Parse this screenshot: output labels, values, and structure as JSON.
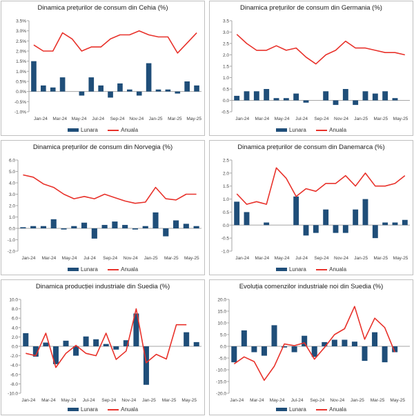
{
  "chart_data": [
    {
      "type": "bar+line",
      "title": "Dinamica prețurilor de consum din Cehia (%)",
      "categories": [
        "Jan-24",
        "Feb-24",
        "Mar-24",
        "Apr-24",
        "May-24",
        "Jun-24",
        "Jul-24",
        "Aug-24",
        "Sep-24",
        "Oct-24",
        "Nov-24",
        "Dec-24",
        "Jan-25",
        "Feb-25",
        "Mar-25",
        "Apr-25",
        "May-25",
        "Jun-25"
      ],
      "tick_labels": [
        "Jan-24",
        "Mar-24",
        "May-24",
        "Jul-24",
        "Sep-24",
        "Nov-24",
        "Jan-25",
        "Mar-25",
        "May-25"
      ],
      "y_ticks": [
        "-1.0%",
        "-0.5%",
        "0.0%",
        "0.5%",
        "1.0%",
        "1.5%",
        "2.0%",
        "2.5%",
        "3.0%",
        "3.5%"
      ],
      "ylim": [
        -1.0,
        3.5
      ],
      "series": [
        {
          "name": "Lunara",
          "type": "bar",
          "values": [
            1.5,
            0.3,
            0.2,
            0.7,
            0.0,
            -0.2,
            0.7,
            0.3,
            -0.3,
            0.4,
            0.1,
            -0.2,
            1.4,
            0.1,
            0.1,
            -0.1,
            0.5,
            0.3
          ]
        },
        {
          "name": "Anuala",
          "type": "line",
          "values": [
            2.3,
            2.0,
            2.0,
            2.9,
            2.6,
            2.0,
            2.2,
            2.2,
            2.6,
            2.8,
            2.8,
            3.0,
            2.8,
            2.7,
            2.7,
            1.9,
            2.4,
            2.9
          ]
        }
      ],
      "legend_position": "bottom",
      "grid": false
    },
    {
      "type": "bar+line",
      "title": "Dinamica prețurilor de consum din Germania (%)",
      "categories": [
        "Jan-24",
        "Feb-24",
        "Mar-24",
        "Apr-24",
        "May-24",
        "Jun-24",
        "Jul-24",
        "Aug-24",
        "Sep-24",
        "Oct-24",
        "Nov-24",
        "Dec-24",
        "Jan-25",
        "Feb-25",
        "Mar-25",
        "Apr-25",
        "May-25",
        "Jun-25"
      ],
      "tick_labels": [
        "Jan-24",
        "Mar-24",
        "May-24",
        "Jul-24",
        "Sep-24",
        "Nov-24",
        "Jan-25",
        "Mar-25",
        "May-25"
      ],
      "y_ticks": [
        "-0.5",
        "0.0",
        "0.5",
        "1.0",
        "1.5",
        "2.0",
        "2.5",
        "3.0",
        "3.5"
      ],
      "ylim": [
        -0.5,
        3.5
      ],
      "series": [
        {
          "name": "Lunara",
          "type": "bar",
          "values": [
            0.2,
            0.4,
            0.4,
            0.5,
            0.1,
            0.1,
            0.3,
            -0.1,
            0.0,
            0.4,
            -0.2,
            0.5,
            -0.2,
            0.4,
            0.3,
            0.4,
            0.1,
            0.0
          ]
        },
        {
          "name": "Anuala",
          "type": "line",
          "values": [
            2.9,
            2.5,
            2.2,
            2.2,
            2.4,
            2.2,
            2.3,
            1.9,
            1.6,
            2.0,
            2.2,
            2.6,
            2.3,
            2.3,
            2.2,
            2.1,
            2.1,
            2.0
          ]
        }
      ],
      "legend_position": "bottom",
      "grid": false
    },
    {
      "type": "bar+line",
      "title": "Dinamica prețurilor de consum din Norvegia (%)",
      "categories": [
        "Jan-24",
        "Feb-24",
        "Mar-24",
        "Apr-24",
        "May-24",
        "Jun-24",
        "Jul-24",
        "Aug-24",
        "Sep-24",
        "Oct-24",
        "Nov-24",
        "Dec-24",
        "Jan-25",
        "Feb-25",
        "Mar-25",
        "Apr-25",
        "May-25",
        "Jun-25"
      ],
      "tick_labels": [
        "Jan-24",
        "Mar-24",
        "May-24",
        "Jul-24",
        "Sep-24",
        "Nov-24",
        "Jan-25",
        "Mar-25",
        "May-25"
      ],
      "y_ticks": [
        "-2.0",
        "-1.0",
        "0.0",
        "1.0",
        "2.0",
        "3.0",
        "4.0",
        "5.0",
        "6.0"
      ],
      "ylim": [
        -2.0,
        6.0
      ],
      "series": [
        {
          "name": "Lunara",
          "type": "bar",
          "values": [
            0.1,
            0.2,
            0.2,
            0.8,
            -0.1,
            0.2,
            0.5,
            -0.9,
            0.3,
            0.6,
            0.3,
            -0.1,
            0.2,
            1.4,
            -0.7,
            0.7,
            0.4,
            0.2
          ]
        },
        {
          "name": "Anuala",
          "type": "line",
          "values": [
            4.7,
            4.5,
            3.9,
            3.6,
            3.0,
            2.6,
            2.8,
            2.6,
            3.0,
            2.7,
            2.4,
            2.2,
            2.3,
            3.6,
            2.6,
            2.5,
            3.0,
            3.0
          ]
        }
      ],
      "legend_position": "bottom",
      "grid": false
    },
    {
      "type": "bar+line",
      "title": "Dinamica prețurilor de consum din Danemarca (%)",
      "categories": [
        "Jan-24",
        "Feb-24",
        "Mar-24",
        "Apr-24",
        "May-24",
        "Jun-24",
        "Jul-24",
        "Aug-24",
        "Sep-24",
        "Oct-24",
        "Nov-24",
        "Dec-24",
        "Jan-25",
        "Feb-25",
        "Mar-25",
        "Apr-25",
        "May-25",
        "Jun-25"
      ],
      "tick_labels": [
        "Jan-24",
        "Mar-24",
        "May-24",
        "Jul-24",
        "Sep-24",
        "Nov-24",
        "Jan-25",
        "Mar-25",
        "May-25"
      ],
      "y_ticks": [
        "-1.0",
        "-0.5",
        "0.0",
        "0.5",
        "1.0",
        "1.5",
        "2.0",
        "2.5"
      ],
      "ylim": [
        -1.0,
        2.5
      ],
      "series": [
        {
          "name": "Lunara",
          "type": "bar",
          "values": [
            0.9,
            0.5,
            0.0,
            0.1,
            0.0,
            0.0,
            1.1,
            -0.4,
            -0.3,
            0.6,
            -0.3,
            -0.3,
            0.6,
            1.0,
            -0.5,
            0.1,
            0.1,
            0.2
          ]
        },
        {
          "name": "Anuala",
          "type": "line",
          "values": [
            1.2,
            0.8,
            0.9,
            0.8,
            2.2,
            1.8,
            1.1,
            1.4,
            1.3,
            1.6,
            1.6,
            1.9,
            1.5,
            2.0,
            1.5,
            1.5,
            1.6,
            1.9
          ]
        }
      ],
      "legend_position": "bottom",
      "grid": false
    },
    {
      "type": "bar+line",
      "title": "Dinamica producției industriale din Suedia (%)",
      "categories": [
        "Jan-24",
        "Feb-24",
        "Mar-24",
        "Apr-24",
        "May-24",
        "Jun-24",
        "Jul-24",
        "Aug-24",
        "Sep-24",
        "Oct-24",
        "Nov-24",
        "Dec-24",
        "Jan-25",
        "Feb-25",
        "Mar-25",
        "Apr-25",
        "May-25",
        "Jun-25"
      ],
      "tick_labels": [
        "Jan-24",
        "Mar-24",
        "May-24",
        "Jul-24",
        "Sep-24",
        "Nov-24",
        "Jan-25",
        "Mar-25",
        "May-25"
      ],
      "y_ticks": [
        "-10.0",
        "-8.0",
        "-6.0",
        "-4.0",
        "-2.0",
        "0.0",
        "2.0",
        "4.0",
        "6.0",
        "8.0",
        "10.0"
      ],
      "ylim": [
        -10.0,
        10.0
      ],
      "series": [
        {
          "name": "Lunara",
          "type": "bar",
          "values": [
            2.8,
            -2.2,
            0.8,
            -3.8,
            1.2,
            -2.0,
            2.1,
            1.5,
            0.5,
            -0.7,
            1.3,
            7.0,
            -8.2,
            0.0,
            0.0,
            0.0,
            3.0,
            0.9
          ]
        },
        {
          "name": "Anuala",
          "type": "line",
          "values": [
            -1.5,
            -2.0,
            2.8,
            -4.5,
            -1.5,
            0.2,
            -1.5,
            -2.0,
            2.8,
            -2.8,
            -1.0,
            8.0,
            -3.5,
            -1.7,
            -2.7,
            4.6,
            4.6,
            null
          ]
        }
      ],
      "legend_position": "bottom",
      "grid": false
    },
    {
      "type": "bar+line",
      "title": "Evoluția comenzilor industriale noi din Suedia (%)",
      "categories": [
        "Jan-24",
        "Feb-24",
        "Mar-24",
        "Apr-24",
        "May-24",
        "Jun-24",
        "Jul-24",
        "Aug-24",
        "Sep-24",
        "Oct-24",
        "Nov-24",
        "Dec-24",
        "Jan-25",
        "Feb-25",
        "Mar-25",
        "Apr-25",
        "May-25",
        "Jun-25"
      ],
      "tick_labels": [
        "Jan-24",
        "Mar-24",
        "May-24",
        "Jul-24",
        "Sep-24",
        "Nov-24",
        "Jan-25",
        "Mar-25",
        "May-25"
      ],
      "y_ticks": [
        "-20.0",
        "-15.0",
        "-10.0",
        "-5.0",
        "0.0",
        "5.0",
        "10.0",
        "15.0",
        "20.0"
      ],
      "ylim": [
        -20.0,
        20.0
      ],
      "series": [
        {
          "name": "Lunara",
          "type": "bar",
          "values": [
            -6.8,
            6.8,
            -2.5,
            -4.0,
            9.0,
            -0.5,
            -2.5,
            4.5,
            -4.5,
            1.8,
            2.8,
            2.8,
            2.0,
            -6.2,
            6.0,
            -6.8,
            -2.5,
            null
          ]
        },
        {
          "name": "Anuala",
          "type": "line",
          "values": [
            -7.5,
            -4.5,
            -6.5,
            -14.5,
            -8.5,
            1.0,
            0.3,
            1.5,
            -5.5,
            -0.5,
            5.0,
            7.5,
            17.0,
            3.0,
            12.0,
            8.0,
            -2.5,
            null
          ]
        }
      ],
      "legend_position": "bottom",
      "grid": false
    }
  ],
  "colors": {
    "bar": "#1f4e79",
    "line": "#e8312a",
    "axis": "#a6a6a6",
    "text": "#404040"
  },
  "legend": {
    "bar_label": "Lunara",
    "line_label": "Anuala"
  }
}
